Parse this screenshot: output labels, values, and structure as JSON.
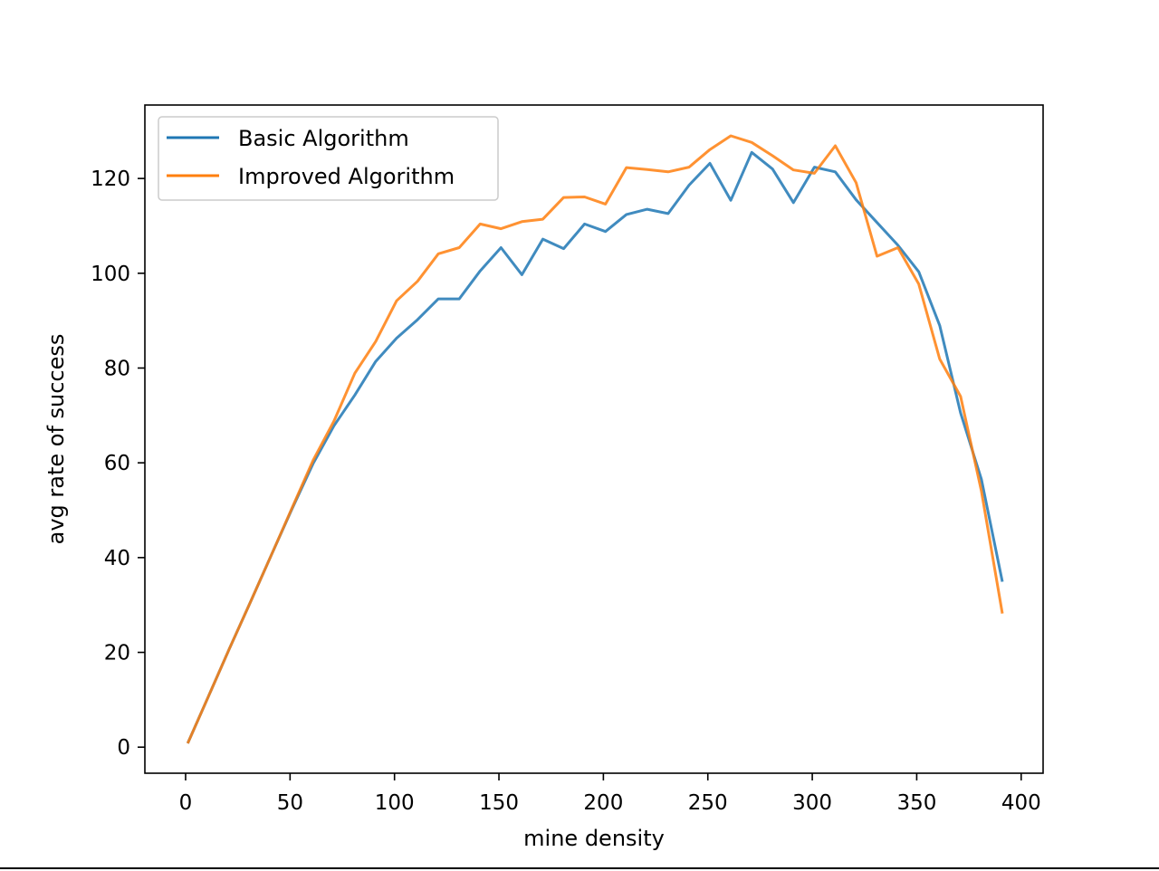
{
  "chart_data": {
    "type": "line",
    "title": "",
    "xlabel": "mine density",
    "ylabel": "avg rate of success",
    "xlim": [
      -19.5,
      410.5
    ],
    "ylim": [
      -5.5,
      135.5
    ],
    "xticks": [
      0,
      50,
      100,
      150,
      200,
      250,
      300,
      350,
      400
    ],
    "yticks": [
      0,
      20,
      40,
      60,
      80,
      100,
      120
    ],
    "grid": false,
    "legend": "top-left",
    "x": [
      1,
      11,
      21,
      31,
      41,
      51,
      61,
      71,
      81,
      91,
      101,
      111,
      121,
      131,
      141,
      151,
      161,
      171,
      181,
      191,
      201,
      211,
      221,
      231,
      241,
      251,
      261,
      271,
      281,
      291,
      301,
      311,
      321,
      331,
      341,
      351,
      361,
      371,
      381,
      391
    ],
    "series": [
      {
        "name": "Basic Algorithm",
        "color": "#1f77b4",
        "values": [
          0.8,
          10.8,
          20.8,
          30.6,
          40.5,
          50.3,
          59.8,
          67.8,
          74.3,
          81.4,
          86.3,
          90.2,
          94.6,
          94.6,
          100.5,
          105.4,
          99.7,
          107.2,
          105.2,
          110.4,
          108.8,
          112.4,
          113.5,
          112.6,
          118.6,
          123.2,
          115.4,
          125.5,
          122.0,
          114.9,
          122.4,
          121.4,
          115.5,
          110.7,
          105.9,
          100.3,
          89.0,
          70.5,
          56.5,
          34.9
        ]
      },
      {
        "name": "Improved Algorithm",
        "color": "#ff7f0e",
        "values": [
          0.8,
          10.8,
          20.8,
          30.6,
          40.5,
          50.5,
          60.5,
          68.8,
          78.9,
          85.6,
          94.2,
          98.3,
          104.1,
          105.4,
          110.4,
          109.4,
          110.9,
          111.4,
          116.0,
          116.1,
          114.6,
          122.3,
          121.9,
          121.4,
          122.4,
          126.1,
          129.0,
          127.6,
          124.8,
          121.8,
          121.1,
          126.9,
          119.1,
          103.6,
          105.4,
          97.7,
          81.9,
          74.0,
          54.0,
          28.2
        ]
      }
    ]
  }
}
